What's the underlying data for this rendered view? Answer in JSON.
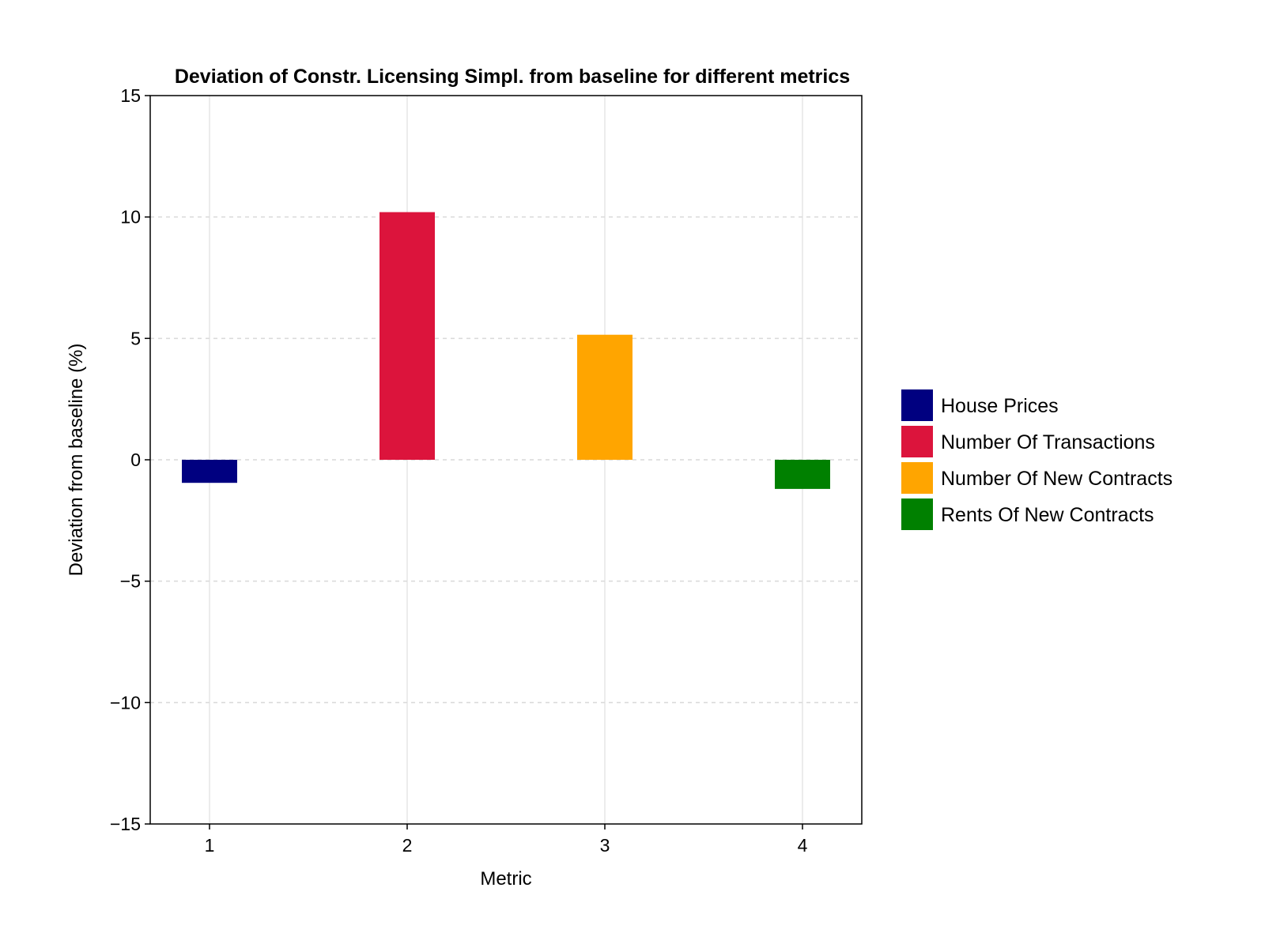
{
  "chart_data": {
    "type": "bar",
    "title": "Deviation of Constr. Licensing Simpl. from baseline for different metrics",
    "xlabel": "Metric",
    "ylabel": "Deviation from baseline (%)",
    "x": [
      1,
      2,
      3,
      4
    ],
    "xticks": [
      "1",
      "2",
      "3",
      "4"
    ],
    "xlim": [
      0.7,
      4.3
    ],
    "ylim": [
      -15,
      15
    ],
    "yticks": [
      -15,
      -10,
      -5,
      0,
      5,
      10,
      15
    ],
    "ytick_labels": [
      "−15",
      "−10",
      "−5",
      "0",
      "5",
      "10",
      "15"
    ],
    "bar_width": 0.28,
    "series": [
      {
        "name": "House Prices",
        "x": 1,
        "value": -0.95,
        "color": "#000080"
      },
      {
        "name": "Number Of Transactions",
        "x": 2,
        "value": 10.2,
        "color": "#dc143c"
      },
      {
        "name": "Number Of New Contracts",
        "x": 3,
        "value": 5.15,
        "color": "#ffa500"
      },
      {
        "name": "Rents Of New Contracts",
        "x": 4,
        "value": -1.2,
        "color": "#008000"
      }
    ],
    "grid": true,
    "legend_position": "right"
  }
}
